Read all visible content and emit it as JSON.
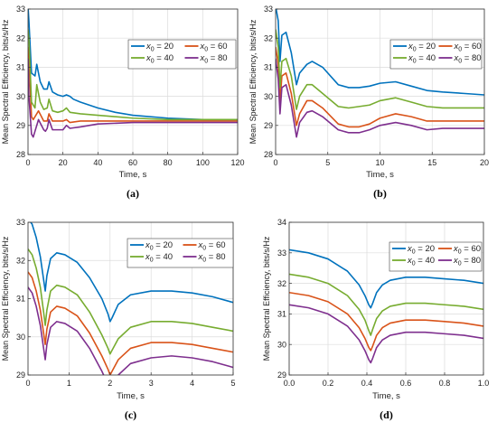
{
  "figure": {
    "legend_labels": [
      "x0 = 20",
      "x0 = 60",
      "x0 = 40",
      "x0 = 80"
    ]
  },
  "chart_data": [
    {
      "id": "a",
      "type": "line",
      "caption": "(a)",
      "xlabel": "Time, s",
      "ylabel": "Mean Spectral Efficiency, bits/s/Hz",
      "xlim": [
        0,
        120
      ],
      "ylim": [
        28,
        33
      ],
      "xticks": [
        0,
        20,
        40,
        60,
        80,
        100,
        120
      ],
      "yticks": [
        28,
        29,
        30,
        31,
        32,
        33
      ],
      "grid": true,
      "legend_position": "top-right",
      "series": [
        {
          "name": "x0 = 20",
          "color": "#0072BD",
          "x": [
            0,
            0.5,
            2,
            4,
            5,
            7,
            9,
            11,
            12,
            14,
            17,
            20,
            22,
            24,
            26,
            30,
            40,
            50,
            60,
            80,
            100,
            120
          ],
          "y": [
            33.1,
            32.6,
            30.8,
            30.7,
            31.1,
            30.5,
            30.25,
            30.25,
            30.5,
            30.15,
            30.05,
            30.0,
            30.05,
            30.0,
            29.9,
            29.8,
            29.6,
            29.45,
            29.35,
            29.25,
            29.2,
            29.2
          ]
        },
        {
          "name": "x0 = 60",
          "color": "#D95319",
          "x": [
            0,
            0.5,
            2,
            3,
            6,
            9,
            11,
            12,
            14,
            17,
            20,
            22,
            24,
            30,
            40,
            60,
            80,
            100,
            120
          ],
          "y": [
            31.7,
            31.3,
            29.3,
            29.2,
            29.5,
            29.15,
            29.15,
            29.4,
            29.15,
            29.15,
            29.15,
            29.2,
            29.1,
            29.15,
            29.15,
            29.15,
            29.15,
            29.15,
            29.15
          ]
        },
        {
          "name": "x0 = 40",
          "color": "#77AC30",
          "x": [
            0,
            0.5,
            2,
            4,
            5,
            7,
            9,
            11,
            12,
            14,
            17,
            20,
            22,
            24,
            30,
            40,
            60,
            80,
            100,
            120
          ],
          "y": [
            32.3,
            32.0,
            29.8,
            29.6,
            30.4,
            29.8,
            29.55,
            29.6,
            29.9,
            29.5,
            29.45,
            29.5,
            29.6,
            29.45,
            29.4,
            29.35,
            29.25,
            29.2,
            29.2,
            29.2
          ]
        },
        {
          "name": "x0 = 80",
          "color": "#7E2F8E",
          "x": [
            0,
            0.5,
            2,
            3,
            6,
            9,
            10,
            11,
            12,
            14,
            17,
            20,
            22,
            24,
            30,
            40,
            60,
            80,
            100,
            120
          ],
          "y": [
            31.3,
            30.0,
            28.7,
            28.6,
            29.2,
            28.85,
            28.8,
            28.9,
            29.2,
            28.85,
            28.85,
            28.85,
            29.0,
            28.9,
            28.95,
            29.05,
            29.1,
            29.1,
            29.1,
            29.1
          ]
        }
      ]
    },
    {
      "id": "b",
      "type": "line",
      "caption": "(b)",
      "xlabel": "Time, s",
      "ylabel": "Mean Spectral Efficiency, bits/s/Hz",
      "xlim": [
        0,
        20
      ],
      "ylim": [
        28,
        33
      ],
      "xticks": [
        0,
        5,
        10,
        15,
        20
      ],
      "yticks": [
        28,
        29,
        30,
        31,
        32,
        33
      ],
      "grid": true,
      "legend_position": "top-right",
      "series": [
        {
          "name": "x0 = 20",
          "color": "#0072BD",
          "x": [
            0,
            0.25,
            0.42,
            0.6,
            1.0,
            1.5,
            2.0,
            2.3,
            3.0,
            3.5,
            4.5,
            6,
            7,
            8,
            9,
            10,
            11.5,
            13,
            14.5,
            16,
            18,
            20
          ],
          "y": [
            33.1,
            32.6,
            31.2,
            32.1,
            32.2,
            31.5,
            30.4,
            30.8,
            31.1,
            31.2,
            31.0,
            30.4,
            30.3,
            30.3,
            30.35,
            30.45,
            30.5,
            30.35,
            30.2,
            30.15,
            30.1,
            30.05
          ]
        },
        {
          "name": "x0 = 60",
          "color": "#D95319",
          "x": [
            0,
            0.25,
            0.42,
            0.6,
            1.0,
            1.5,
            2.0,
            2.3,
            3.0,
            3.5,
            4.5,
            6,
            7,
            8,
            9,
            10,
            11.5,
            13,
            14.5,
            16,
            18,
            20
          ],
          "y": [
            31.7,
            31.1,
            29.8,
            30.7,
            30.8,
            30.1,
            29.0,
            29.4,
            29.85,
            29.85,
            29.6,
            29.05,
            28.95,
            28.95,
            29.05,
            29.25,
            29.4,
            29.3,
            29.15,
            29.15,
            29.15,
            29.15
          ]
        },
        {
          "name": "x0 = 40",
          "color": "#77AC30",
          "x": [
            0,
            0.25,
            0.42,
            0.6,
            1.0,
            1.5,
            2.0,
            2.3,
            3.0,
            3.5,
            4.5,
            6,
            7,
            8,
            9,
            10,
            11.5,
            13,
            14.5,
            16,
            18,
            20
          ],
          "y": [
            32.3,
            31.7,
            30.3,
            31.2,
            31.3,
            30.7,
            29.55,
            30.0,
            30.4,
            30.4,
            30.1,
            29.65,
            29.6,
            29.65,
            29.7,
            29.85,
            29.95,
            29.8,
            29.65,
            29.6,
            29.6,
            29.6
          ]
        },
        {
          "name": "x0 = 80",
          "color": "#7E2F8E",
          "x": [
            0,
            0.25,
            0.42,
            0.6,
            1.0,
            1.5,
            2.0,
            2.3,
            3.0,
            3.5,
            4.5,
            6,
            7,
            8,
            9,
            10,
            11.5,
            13,
            14.5,
            16,
            18,
            20
          ],
          "y": [
            31.3,
            30.6,
            29.4,
            30.3,
            30.4,
            29.7,
            28.6,
            29.1,
            29.45,
            29.5,
            29.3,
            28.85,
            28.75,
            28.75,
            28.85,
            29.0,
            29.1,
            29.0,
            28.85,
            28.9,
            28.9,
            28.9
          ]
        }
      ]
    },
    {
      "id": "c",
      "type": "line",
      "caption": "(c)",
      "xlabel": "Time, s",
      "ylabel": "Mean Spectral Efficiency, bits/s/Hz",
      "xlim": [
        0,
        5
      ],
      "ylim": [
        29,
        33
      ],
      "xticks": [
        0,
        1,
        2,
        3,
        4,
        5
      ],
      "yticks": [
        29,
        30,
        31,
        32,
        33
      ],
      "grid": true,
      "legend_position": "top-right",
      "series": [
        {
          "name": "x0 = 20",
          "color": "#0072BD",
          "x": [
            0,
            0.1,
            0.2,
            0.3,
            0.38,
            0.42,
            0.46,
            0.55,
            0.7,
            0.9,
            1.2,
            1.5,
            1.8,
            1.95,
            2.0,
            2.05,
            2.2,
            2.5,
            3.0,
            3.5,
            4.0,
            4.5,
            5.0
          ],
          "y": [
            33.1,
            32.95,
            32.6,
            32.1,
            31.5,
            31.2,
            31.6,
            32.05,
            32.2,
            32.15,
            31.95,
            31.55,
            31.0,
            30.6,
            30.4,
            30.5,
            30.85,
            31.1,
            31.2,
            31.2,
            31.15,
            31.05,
            30.9
          ]
        },
        {
          "name": "x0 = 60",
          "color": "#D95319",
          "x": [
            0,
            0.1,
            0.2,
            0.3,
            0.38,
            0.42,
            0.46,
            0.55,
            0.7,
            0.9,
            1.2,
            1.5,
            1.8,
            1.95,
            2.0,
            2.05,
            2.2,
            2.5,
            3.0,
            3.5,
            4.0,
            4.5,
            5.0
          ],
          "y": [
            31.7,
            31.55,
            31.2,
            30.7,
            30.1,
            29.8,
            30.2,
            30.65,
            30.8,
            30.75,
            30.55,
            30.1,
            29.5,
            29.15,
            29.0,
            29.1,
            29.4,
            29.7,
            29.85,
            29.85,
            29.8,
            29.7,
            29.6
          ]
        },
        {
          "name": "x0 = 40",
          "color": "#77AC30",
          "x": [
            0,
            0.1,
            0.2,
            0.3,
            0.38,
            0.42,
            0.46,
            0.55,
            0.7,
            0.9,
            1.2,
            1.5,
            1.8,
            1.95,
            2.0,
            2.05,
            2.2,
            2.5,
            3.0,
            3.5,
            4.0,
            4.5,
            5.0
          ],
          "y": [
            32.3,
            32.15,
            31.8,
            31.3,
            30.65,
            30.3,
            30.7,
            31.2,
            31.35,
            31.3,
            31.1,
            30.65,
            30.05,
            29.7,
            29.55,
            29.65,
            29.95,
            30.25,
            30.4,
            30.4,
            30.35,
            30.25,
            30.15
          ]
        },
        {
          "name": "x0 = 80",
          "color": "#7E2F8E",
          "x": [
            0,
            0.1,
            0.2,
            0.3,
            0.38,
            0.42,
            0.46,
            0.55,
            0.7,
            0.9,
            1.2,
            1.5,
            1.8,
            1.95,
            2.0,
            2.05,
            2.2,
            2.5,
            3.0,
            3.5,
            4.0,
            4.5,
            5.0
          ],
          "y": [
            31.3,
            31.15,
            30.8,
            30.3,
            29.7,
            29.4,
            29.8,
            30.25,
            30.4,
            30.35,
            30.15,
            29.7,
            29.1,
            28.75,
            28.6,
            28.7,
            29.0,
            29.3,
            29.45,
            29.5,
            29.45,
            29.35,
            29.2
          ]
        }
      ]
    },
    {
      "id": "d",
      "type": "line",
      "caption": "(d)",
      "xlabel": "Time, s",
      "ylabel": "Mean Spectral Efficiency, bits/s/Hz",
      "xlim": [
        0,
        1
      ],
      "ylim": [
        29,
        34
      ],
      "xticks": [
        0,
        0.2,
        0.4,
        0.6,
        0.8,
        1.0
      ],
      "xticklabels": [
        "0.0",
        "0.2",
        "0.4",
        "0.6",
        "0.8",
        "1.0"
      ],
      "yticks": [
        29,
        30,
        31,
        32,
        33,
        34
      ],
      "grid": true,
      "legend_position": "top-right",
      "series": [
        {
          "name": "x0 = 20",
          "color": "#0072BD",
          "x": [
            0,
            0.1,
            0.2,
            0.3,
            0.36,
            0.39,
            0.41,
            0.42,
            0.43,
            0.45,
            0.48,
            0.52,
            0.6,
            0.7,
            0.8,
            0.9,
            1.0
          ],
          "y": [
            33.1,
            33.0,
            32.8,
            32.4,
            31.95,
            31.6,
            31.3,
            31.2,
            31.35,
            31.7,
            31.95,
            32.1,
            32.2,
            32.2,
            32.15,
            32.1,
            32.0
          ]
        },
        {
          "name": "x0 = 60",
          "color": "#D95319",
          "x": [
            0,
            0.1,
            0.2,
            0.3,
            0.36,
            0.39,
            0.41,
            0.42,
            0.43,
            0.45,
            0.48,
            0.52,
            0.6,
            0.7,
            0.8,
            0.9,
            1.0
          ],
          "y": [
            31.7,
            31.6,
            31.4,
            31.0,
            30.55,
            30.2,
            29.9,
            29.8,
            29.95,
            30.3,
            30.55,
            30.7,
            30.8,
            30.8,
            30.75,
            30.7,
            30.6
          ]
        },
        {
          "name": "x0 = 40",
          "color": "#77AC30",
          "x": [
            0,
            0.1,
            0.2,
            0.3,
            0.36,
            0.39,
            0.41,
            0.42,
            0.43,
            0.45,
            0.48,
            0.52,
            0.6,
            0.7,
            0.8,
            0.9,
            1.0
          ],
          "y": [
            32.3,
            32.2,
            32.0,
            31.6,
            31.15,
            30.8,
            30.45,
            30.3,
            30.5,
            30.85,
            31.1,
            31.25,
            31.35,
            31.35,
            31.3,
            31.25,
            31.15
          ]
        },
        {
          "name": "x0 = 80",
          "color": "#7E2F8E",
          "x": [
            0,
            0.1,
            0.2,
            0.3,
            0.36,
            0.39,
            0.41,
            0.42,
            0.43,
            0.45,
            0.48,
            0.52,
            0.6,
            0.7,
            0.8,
            0.9,
            1.0
          ],
          "y": [
            31.3,
            31.2,
            31.0,
            30.6,
            30.15,
            29.8,
            29.5,
            29.4,
            29.55,
            29.9,
            30.15,
            30.3,
            30.4,
            30.4,
            30.35,
            30.3,
            30.2
          ]
        }
      ]
    }
  ]
}
